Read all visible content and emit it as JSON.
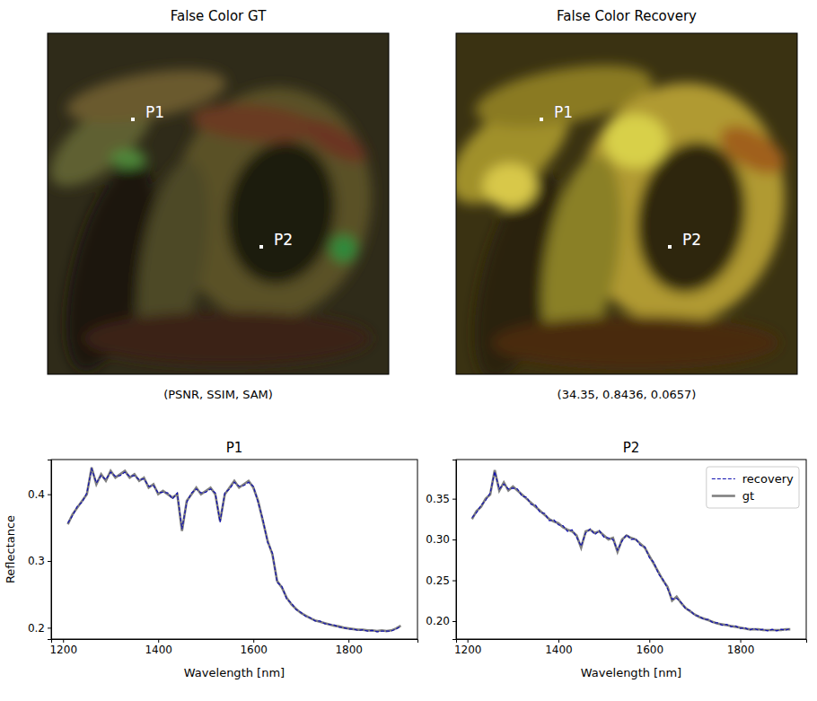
{
  "images": [
    {
      "title": "False Color GT",
      "caption": "(PSNR, SSIM, SAM)",
      "points": [
        {
          "label": "P1"
        },
        {
          "label": "P2"
        }
      ]
    },
    {
      "title": "False Color Recovery",
      "caption": "(34.35, 0.8436, 0.0657)",
      "points": [
        {
          "label": "P1"
        },
        {
          "label": "P2"
        }
      ]
    }
  ],
  "chart_data": [
    {
      "type": "line",
      "title": "P1",
      "x_label": "Wavelength [nm]",
      "y_label": "Reflectance",
      "x": [
        1210,
        1220,
        1230,
        1240,
        1250,
        1260,
        1270,
        1280,
        1290,
        1300,
        1310,
        1320,
        1330,
        1340,
        1350,
        1360,
        1370,
        1380,
        1390,
        1400,
        1410,
        1420,
        1430,
        1440,
        1450,
        1460,
        1470,
        1480,
        1490,
        1500,
        1510,
        1520,
        1530,
        1540,
        1550,
        1560,
        1570,
        1580,
        1590,
        1600,
        1610,
        1620,
        1630,
        1640,
        1650,
        1660,
        1670,
        1680,
        1690,
        1700,
        1710,
        1720,
        1730,
        1740,
        1750,
        1760,
        1770,
        1780,
        1790,
        1800,
        1810,
        1820,
        1830,
        1840,
        1850,
        1860,
        1870,
        1880,
        1890,
        1900,
        1910
      ],
      "xlim": [
        1175,
        1945
      ],
      "xticks": [
        1200,
        1400,
        1600,
        1800
      ],
      "ylim": [
        0.183,
        0.452
      ],
      "yticks": [
        0.2,
        0.3,
        0.4
      ],
      "series": [
        {
          "color": "#1010b0",
          "line_style": "dashed",
          "values": [
            0.357,
            0.368,
            0.382,
            0.388,
            0.402,
            0.438,
            0.417,
            0.428,
            0.422,
            0.433,
            0.427,
            0.428,
            0.433,
            0.427,
            0.428,
            0.422,
            0.423,
            0.412,
            0.413,
            0.402,
            0.403,
            0.402,
            0.393,
            0.402,
            0.348,
            0.388,
            0.402,
            0.408,
            0.402,
            0.403,
            0.408,
            0.402,
            0.358,
            0.402,
            0.408,
            0.418,
            0.412,
            0.413,
            0.418,
            0.412,
            0.388,
            0.362,
            0.328,
            0.312,
            0.268,
            0.262,
            0.243,
            0.237,
            0.227,
            0.223,
            0.217,
            0.215,
            0.21,
            0.21,
            0.206,
            0.205,
            0.204,
            0.201,
            0.2,
            0.198,
            0.198,
            0.196,
            0.197,
            0.195,
            0.196,
            0.194,
            0.195,
            0.195,
            0.195,
            0.198,
            0.202
          ]
        },
        {
          "color": "#808080",
          "line_style": "solid",
          "values": [
            0.355,
            0.37,
            0.38,
            0.39,
            0.4,
            0.44,
            0.415,
            0.43,
            0.42,
            0.435,
            0.425,
            0.43,
            0.435,
            0.425,
            0.43,
            0.42,
            0.425,
            0.41,
            0.415,
            0.4,
            0.405,
            0.4,
            0.395,
            0.4,
            0.345,
            0.39,
            0.4,
            0.41,
            0.4,
            0.405,
            0.41,
            0.4,
            0.36,
            0.4,
            0.41,
            0.42,
            0.41,
            0.415,
            0.42,
            0.41,
            0.39,
            0.36,
            0.33,
            0.31,
            0.27,
            0.26,
            0.245,
            0.235,
            0.228,
            0.222,
            0.218,
            0.214,
            0.211,
            0.209,
            0.207,
            0.205,
            0.203,
            0.202,
            0.2,
            0.199,
            0.198,
            0.197,
            0.197,
            0.196,
            0.196,
            0.195,
            0.196,
            0.195,
            0.196,
            0.199,
            0.203
          ]
        }
      ]
    },
    {
      "type": "line",
      "title": "P2",
      "x_label": "Wavelength [nm]",
      "legend": "upper right",
      "x": [
        1210,
        1220,
        1230,
        1240,
        1250,
        1260,
        1270,
        1280,
        1290,
        1300,
        1310,
        1320,
        1330,
        1340,
        1350,
        1360,
        1370,
        1380,
        1390,
        1400,
        1410,
        1420,
        1430,
        1440,
        1450,
        1460,
        1470,
        1480,
        1490,
        1500,
        1510,
        1520,
        1530,
        1540,
        1550,
        1560,
        1570,
        1580,
        1590,
        1600,
        1610,
        1620,
        1630,
        1640,
        1650,
        1660,
        1670,
        1680,
        1690,
        1700,
        1710,
        1720,
        1730,
        1740,
        1750,
        1760,
        1770,
        1780,
        1790,
        1800,
        1810,
        1820,
        1830,
        1840,
        1850,
        1860,
        1870,
        1880,
        1890,
        1900,
        1910
      ],
      "xlim": [
        1175,
        1945
      ],
      "xticks": [
        1200,
        1400,
        1600,
        1800
      ],
      "ylim": [
        0.178,
        0.398
      ],
      "yticks": [
        {
          "value": 0.2,
          "label": "0.20"
        },
        {
          "value": 0.25,
          "label": "0.25"
        },
        {
          "value": 0.3,
          "label": "0.30"
        },
        {
          "value": 0.35,
          "label": "0.35"
        }
      ],
      "series": [
        {
          "name": "recovery",
          "color": "#1010b0",
          "line_style": "dashed",
          "values": [
            0.327,
            0.333,
            0.342,
            0.348,
            0.357,
            0.383,
            0.362,
            0.368,
            0.362,
            0.363,
            0.362,
            0.353,
            0.352,
            0.343,
            0.342,
            0.333,
            0.332,
            0.323,
            0.324,
            0.318,
            0.317,
            0.31,
            0.312,
            0.303,
            0.292,
            0.308,
            0.313,
            0.306,
            0.311,
            0.303,
            0.302,
            0.3,
            0.287,
            0.298,
            0.306,
            0.3,
            0.301,
            0.293,
            0.291,
            0.278,
            0.272,
            0.258,
            0.251,
            0.24,
            0.227,
            0.228,
            0.223,
            0.215,
            0.213,
            0.207,
            0.206,
            0.202,
            0.202,
            0.198,
            0.198,
            0.195,
            0.196,
            0.193,
            0.194,
            0.191,
            0.192,
            0.189,
            0.191,
            0.189,
            0.19,
            0.188,
            0.19,
            0.188,
            0.19,
            0.189,
            0.191
          ]
        },
        {
          "name": "gt",
          "color": "#808080",
          "line_style": "solid",
          "values": [
            0.325,
            0.335,
            0.34,
            0.35,
            0.355,
            0.385,
            0.36,
            0.37,
            0.36,
            0.365,
            0.36,
            0.355,
            0.35,
            0.345,
            0.34,
            0.335,
            0.33,
            0.325,
            0.322,
            0.32,
            0.315,
            0.312,
            0.31,
            0.305,
            0.29,
            0.31,
            0.312,
            0.308,
            0.31,
            0.305,
            0.3,
            0.302,
            0.285,
            0.3,
            0.305,
            0.302,
            0.3,
            0.295,
            0.29,
            0.28,
            0.27,
            0.26,
            0.25,
            0.242,
            0.225,
            0.23,
            0.222,
            0.216,
            0.212,
            0.208,
            0.205,
            0.203,
            0.201,
            0.199,
            0.197,
            0.196,
            0.195,
            0.194,
            0.193,
            0.192,
            0.191,
            0.19,
            0.19,
            0.19,
            0.189,
            0.189,
            0.189,
            0.189,
            0.189,
            0.19,
            0.19
          ]
        }
      ]
    }
  ]
}
